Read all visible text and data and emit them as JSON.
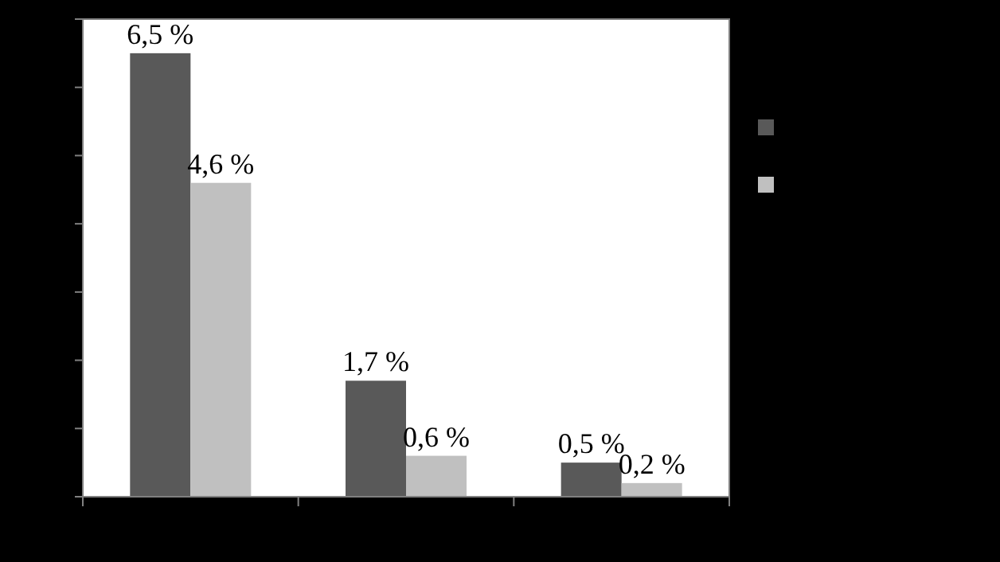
{
  "chart_data": {
    "type": "bar",
    "categories": [
      null,
      null,
      null
    ],
    "series": [
      {
        "color": "#595959",
        "values": [
          6.5,
          1.7,
          0.5
        ],
        "value_labels": [
          "6,5 %",
          "1,7 %",
          "0,5 %"
        ]
      },
      {
        "color": "#c0c0c0",
        "values": [
          4.6,
          0.6,
          0.2
        ],
        "value_labels": [
          "4,6 %",
          "0,6 %",
          "0,2 %"
        ]
      }
    ],
    "ylim": [
      0,
      7
    ],
    "yticks": [
      {
        "value": 0,
        "label": null
      },
      {
        "value": 1,
        "label": null
      },
      {
        "value": 2,
        "label": null
      },
      {
        "value": 3,
        "label": null
      },
      {
        "value": 4,
        "label": null
      },
      {
        "value": 5,
        "label": null
      },
      {
        "value": 6,
        "label": null
      },
      {
        "value": 7,
        "label": null
      }
    ],
    "grid": false
  }
}
